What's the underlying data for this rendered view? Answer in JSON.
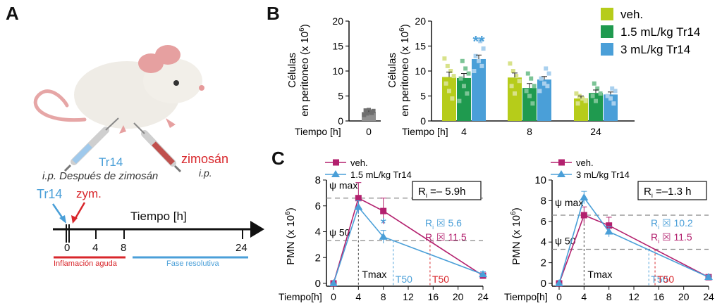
{
  "panels": {
    "A": {
      "letter": "A",
      "injection_label": "Tr14",
      "injection_route_text": "i.p. Después de zimosán",
      "zymosan_label": "zimosán",
      "zymosan_route": "i.p.",
      "timeline_tr14": "Tr14",
      "timeline_zym": "zym.",
      "timeline_title": "Tiempo [h]",
      "timeline_ticks": [
        "0",
        "4",
        "8",
        "24"
      ],
      "phase_inflammation": "Inflamación aguda",
      "phase_resolution": "Fase resolutiva",
      "colors": {
        "tr14": "#4a9fd8",
        "zym": "#d8262b"
      }
    },
    "B": {
      "letter": "B"
    },
    "C": {
      "letter": "C"
    }
  },
  "chart_data": [
    {
      "id": "B-baseline",
      "type": "bar",
      "ylabel_line1": "Células",
      "ylabel_line2": "en peritoneo  (x 10",
      "ylabel_sup": "6",
      "ylabel_close": ")",
      "ylim": [
        0,
        20
      ],
      "yticks": [
        "0",
        "5",
        "10",
        "15",
        "20"
      ],
      "xlabel": "Tiempo [h]",
      "categories": [
        "0"
      ],
      "values": [
        1.8
      ],
      "errors": [
        0.3
      ],
      "points": [
        1.2,
        1.5,
        1.8,
        2.0,
        2.1,
        2.2,
        1.6
      ],
      "color": "#8f8f8f"
    },
    {
      "id": "B-groups",
      "type": "bar",
      "ylabel_line1": "Células",
      "ylabel_line2": "en peritoneo  (x 10",
      "ylabel_sup": "6",
      "ylabel_close": ")",
      "ylim": [
        0,
        20
      ],
      "yticks": [
        "0",
        "5",
        "10",
        "15",
        "20"
      ],
      "xlabel": "Tiempo [h]",
      "categories": [
        "4",
        "8",
        "24"
      ],
      "series": [
        {
          "name": "veh.",
          "color": "#b6cc1a",
          "values": [
            8.8,
            8.7,
            4.5
          ],
          "errors": [
            1.0,
            0.9,
            0.5
          ],
          "points": [
            [
              12.5,
              11.0,
              10.0,
              9.0,
              7.5,
              6.0,
              4.5
            ],
            [
              11.5,
              10.0,
              9.0,
              8.0,
              7.0,
              5.5
            ],
            [
              5.5,
              5.0,
              4.5,
              4.0,
              3.5
            ]
          ]
        },
        {
          "name": "1.5 mL/kg Tr14",
          "color": "#1f9a4f",
          "values": [
            8.6,
            6.6,
            5.6
          ],
          "errors": [
            0.9,
            0.9,
            0.6
          ],
          "points": [
            [
              12.0,
              10.5,
              9.5,
              8.5,
              7.0,
              5.5,
              4.0
            ],
            [
              9.5,
              8.5,
              7.0,
              6.0,
              5.0,
              3.5
            ],
            [
              7.5,
              6.5,
              5.5,
              5.0,
              4.0
            ]
          ]
        },
        {
          "name": "3 mL/kg Tr14",
          "color": "#4a9fd8",
          "values": [
            12.4,
            8.3,
            5.3
          ],
          "errors": [
            0.8,
            0.6,
            0.5
          ],
          "points": [
            [
              16.0,
              14.5,
              13.0,
              12.0,
              11.0,
              10.0
            ],
            [
              10.5,
              9.5,
              8.5,
              7.5,
              7.0,
              6.0
            ],
            [
              6.5,
              6.0,
              5.0,
              4.5,
              3.5
            ]
          ]
        }
      ],
      "annotations": [
        {
          "category": "4",
          "series": 2,
          "text": "**"
        }
      ],
      "legend": "top-right"
    },
    {
      "id": "C-1.5",
      "type": "line",
      "ylabel": "PMN  (x 10",
      "ylabel_sup": "6",
      "ylabel_close": ")",
      "xlabel": "Tiempo[h]",
      "x": [
        0,
        4,
        8,
        24
      ],
      "xticks": [
        "0",
        "4",
        "8",
        "12",
        "16",
        "20",
        "24"
      ],
      "ylim": [
        0,
        8
      ],
      "yticks": [
        "0",
        "2",
        "4",
        "6",
        "8"
      ],
      "series": [
        {
          "name": "veh.",
          "color": "#b3206e",
          "marker": "square",
          "values": [
            0,
            6.6,
            5.6,
            0.6
          ],
          "errors": [
            0,
            1.2,
            1.0,
            0.2
          ]
        },
        {
          "name": "1.5 mL/kg Tr14",
          "color": "#4a9fd8",
          "marker": "triangle",
          "values": [
            0,
            5.9,
            3.6,
            0.7
          ],
          "errors": [
            0,
            0.5,
            0.5,
            0.2
          ]
        }
      ],
      "psi_max_label": "ψ max",
      "psi_50_label": "ψ 50",
      "psi_max_y": 6.6,
      "psi_50_y": 3.3,
      "ri_box": "R",
      "ri_box_sub": "i",
      "ri_box_value": " =– 5.9h",
      "ri_lines": [
        {
          "text": "R",
          "sub": "i",
          "value": " ☒ 5.6",
          "color": "#4a9fd8"
        },
        {
          "text": "R",
          "sub": "i",
          "value": " ☒ 11.5",
          "color": "#b3206e"
        }
      ],
      "tmax_label": "Tmax",
      "tmax_x": 4,
      "t50_labels": [
        {
          "text": "T50",
          "x": 9.6,
          "color": "#4a9fd8"
        },
        {
          "text": "T50",
          "x": 15.5,
          "color": "#d8262b"
        }
      ],
      "annotations": [
        {
          "x": 8,
          "text": "*",
          "color": "#4a9fd8"
        }
      ],
      "legend": "top-left"
    },
    {
      "id": "C-3",
      "type": "line",
      "ylabel": "PMN  (x 10",
      "ylabel_sup": "6",
      "ylabel_close": ")",
      "xlabel": "Tiempo[h]",
      "x": [
        0,
        4,
        8,
        24
      ],
      "xticks": [
        "0",
        "4",
        "8",
        "12",
        "16",
        "20",
        "24"
      ],
      "ylim": [
        0,
        10
      ],
      "yticks": [
        "0",
        "2",
        "4",
        "6",
        "8",
        "10"
      ],
      "series": [
        {
          "name": "veh.",
          "color": "#b3206e",
          "marker": "square",
          "values": [
            0,
            6.6,
            5.6,
            0.6
          ],
          "errors": [
            0,
            0.8,
            0.8,
            0.2
          ]
        },
        {
          "name": "3 mL/kg Tr14",
          "color": "#4a9fd8",
          "marker": "triangle",
          "values": [
            0,
            8.3,
            5.0,
            0.6
          ],
          "errors": [
            0,
            0.6,
            0.5,
            0.2
          ]
        }
      ],
      "psi_max_label": "ψ max",
      "psi_50_label": "ψ 50",
      "psi_max_y": 6.6,
      "psi_50_y": 3.3,
      "ri_box": "R",
      "ri_box_sub": "i",
      "ri_box_value": " =–1.3 h",
      "ri_lines": [
        {
          "text": "R",
          "sub": "i",
          "value": " ☒ 10.2",
          "color": "#4a9fd8"
        },
        {
          "text": "R",
          "sub": "i",
          "value": " ☒ 11.5",
          "color": "#b3206e"
        }
      ],
      "tmax_label": "Tmax",
      "tmax_x": 4,
      "t50_labels": [
        {
          "text": "T50",
          "x": 14.4,
          "color": "#4a9fd8"
        },
        {
          "text": "T50",
          "x": 15.4,
          "color": "#d8262b"
        }
      ],
      "annotations": [],
      "legend": "top-left"
    }
  ]
}
